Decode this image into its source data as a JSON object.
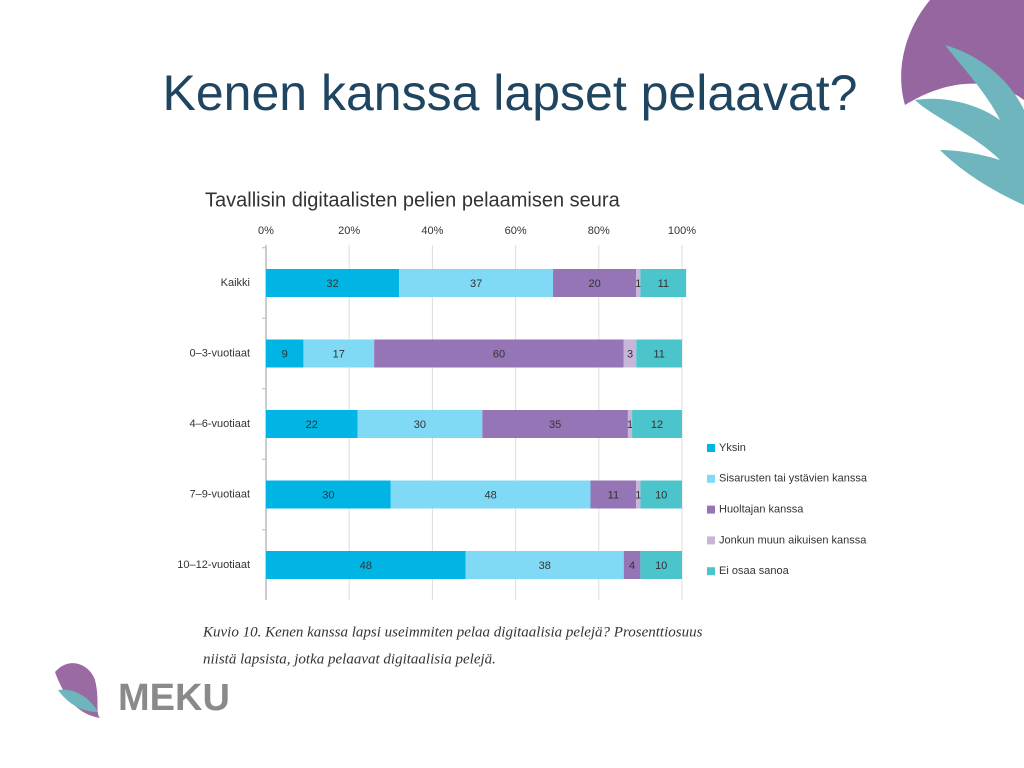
{
  "title": "Kenen kanssa lapset pelaavat?",
  "chart_data": {
    "type": "bar",
    "orientation": "horizontal",
    "stacked": true,
    "title": "Tavallisin digitaalisten pelien pelaamisen seura",
    "categories": [
      "Kaikki",
      "0–3-vuotiaat",
      "4–6-vuotiaat",
      "7–9-vuotiaat",
      "10–12-vuotiaat"
    ],
    "series": [
      {
        "name": "Yksin",
        "color": "#00b4e3",
        "values": [
          32,
          9,
          22,
          30,
          48
        ]
      },
      {
        "name": "Sisarusten tai ystävien kanssa",
        "color": "#80daf5",
        "values": [
          37,
          17,
          30,
          48,
          38
        ]
      },
      {
        "name": "Huoltajan kanssa",
        "color": "#9575b6",
        "values": [
          20,
          60,
          35,
          11,
          4
        ]
      },
      {
        "name": "Jonkun muun aikuisen kanssa",
        "color": "#c7b6da",
        "values": [
          1,
          3,
          1,
          1,
          0
        ]
      },
      {
        "name": "Ei osaa sanoa",
        "color": "#4cc4cc",
        "values": [
          11,
          11,
          12,
          10,
          10
        ]
      }
    ],
    "xlim": [
      0,
      100
    ],
    "xticks": [
      {
        "value": 0,
        "label": "0%"
      },
      {
        "value": 20,
        "label": "20%"
      },
      {
        "value": 40,
        "label": "40%"
      },
      {
        "value": 60,
        "label": "60%"
      },
      {
        "value": 80,
        "label": "80%"
      },
      {
        "value": 100,
        "label": "100%"
      }
    ],
    "grid": true,
    "legend": "right"
  },
  "caption": [
    "Kuvio 10. Kenen kanssa lapsi useimmiten pelaa digitaalisia pelejä? Prosenttiosuus",
    "niistä lapsista, jotka pelaavat digitaalisia pelejä."
  ],
  "logo": "MEKU"
}
